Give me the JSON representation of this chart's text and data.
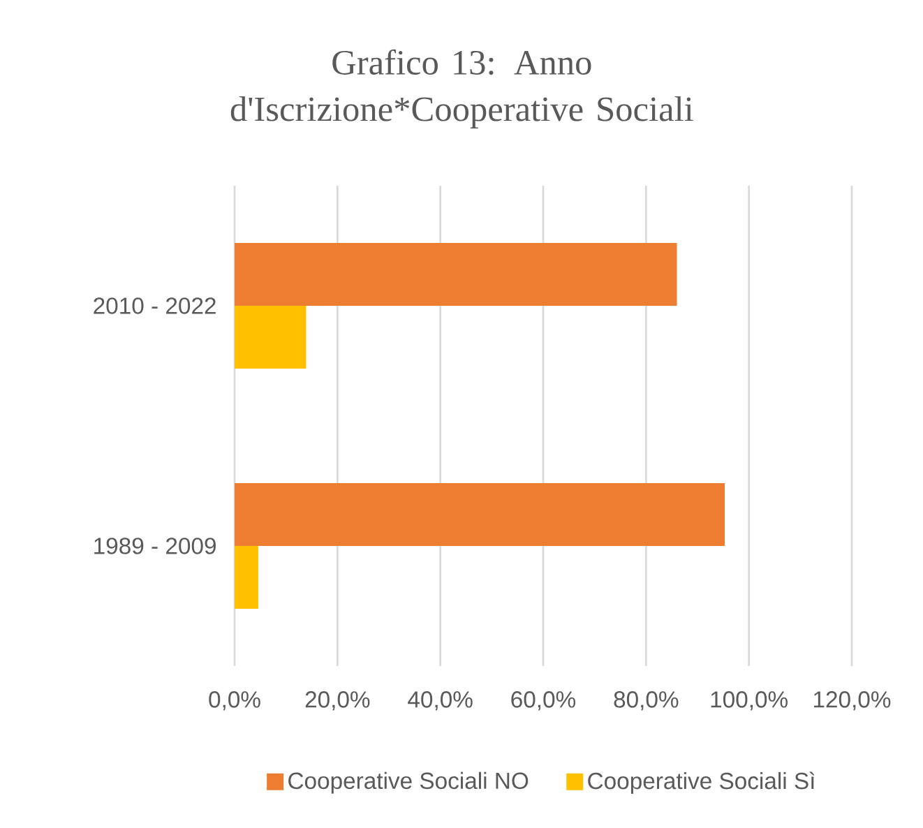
{
  "chart_data": {
    "type": "bar",
    "orientation": "horizontal",
    "title": "Grafico 13: Anno d'Iscrizione*Cooperative Sociali",
    "categories": [
      "2010 - 2022",
      "1989 - 2009"
    ],
    "series": [
      {
        "name": "Cooperative Sociali NO",
        "color": "#ed7d31",
        "values": [
          86.0,
          95.3
        ]
      },
      {
        "name": "Cooperative Sociali Sì",
        "color": "#ffc000",
        "values": [
          13.9,
          4.6
        ]
      }
    ],
    "xlim": [
      0,
      120
    ],
    "xticks": [
      {
        "value": 0,
        "label": "0,0%"
      },
      {
        "value": 20,
        "label": "20,0%"
      },
      {
        "value": 40,
        "label": "40,0%"
      },
      {
        "value": 60,
        "label": "60,0%"
      },
      {
        "value": 80,
        "label": "80,0%"
      },
      {
        "value": 100,
        "label": "100,0%"
      },
      {
        "value": 120,
        "label": "120,0%"
      }
    ],
    "grid": "x",
    "legend": "bottom"
  }
}
